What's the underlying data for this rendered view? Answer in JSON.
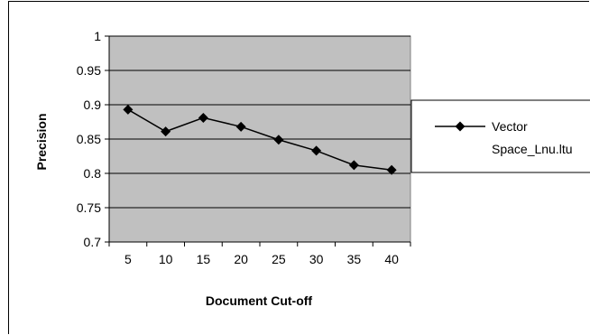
{
  "chart_data": {
    "type": "line",
    "title": "",
    "xlabel": "Document Cut-off",
    "ylabel": "Precision",
    "x": [
      5,
      10,
      15,
      20,
      25,
      30,
      35,
      40
    ],
    "categories": [
      "5",
      "10",
      "15",
      "20",
      "25",
      "30",
      "35",
      "40"
    ],
    "ylim": [
      0.7,
      1
    ],
    "yticks": [
      0.7,
      0.75,
      0.8,
      0.85,
      0.9,
      0.95,
      1
    ],
    "ytick_labels": [
      "0.7",
      "0.75",
      "0.8",
      "0.85",
      "0.9",
      "0.95",
      "1"
    ],
    "grid": "horizontal",
    "legend_position": "right",
    "plot_background": "#c0c0c0",
    "series": [
      {
        "name": "Vector Space_Lnu.ltu",
        "legend_lines": [
          "Vector",
          "Space_Lnu.ltu"
        ],
        "values": [
          0.893,
          0.861,
          0.881,
          0.868,
          0.849,
          0.833,
          0.812,
          0.805
        ],
        "color": "#000000",
        "marker": "diamond"
      }
    ]
  }
}
